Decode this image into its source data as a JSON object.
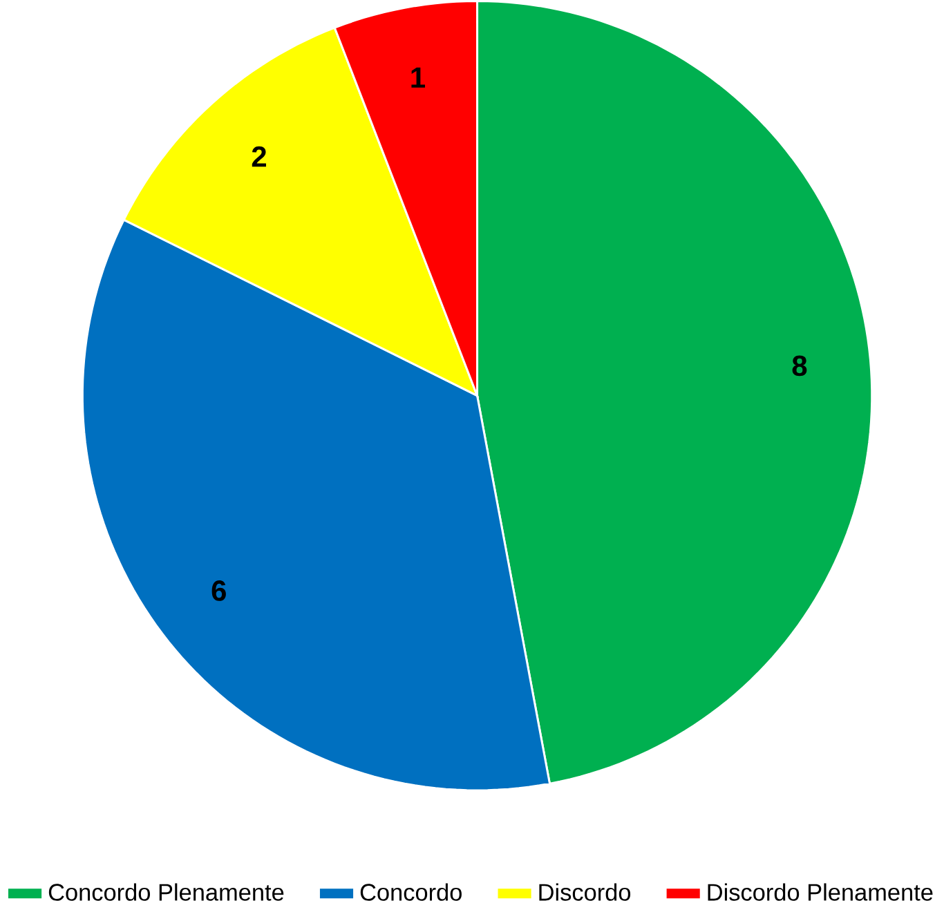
{
  "chart_data": {
    "type": "pie",
    "categories": [
      "Concordo Plenamente",
      "Concordo",
      "Discordo",
      "Discordo Plenamente"
    ],
    "values": [
      8,
      6,
      2,
      1
    ],
    "colors": [
      "#00b050",
      "#0070c0",
      "#ffff00",
      "#ff0000"
    ],
    "data_labels": true,
    "legend": "bottom"
  }
}
